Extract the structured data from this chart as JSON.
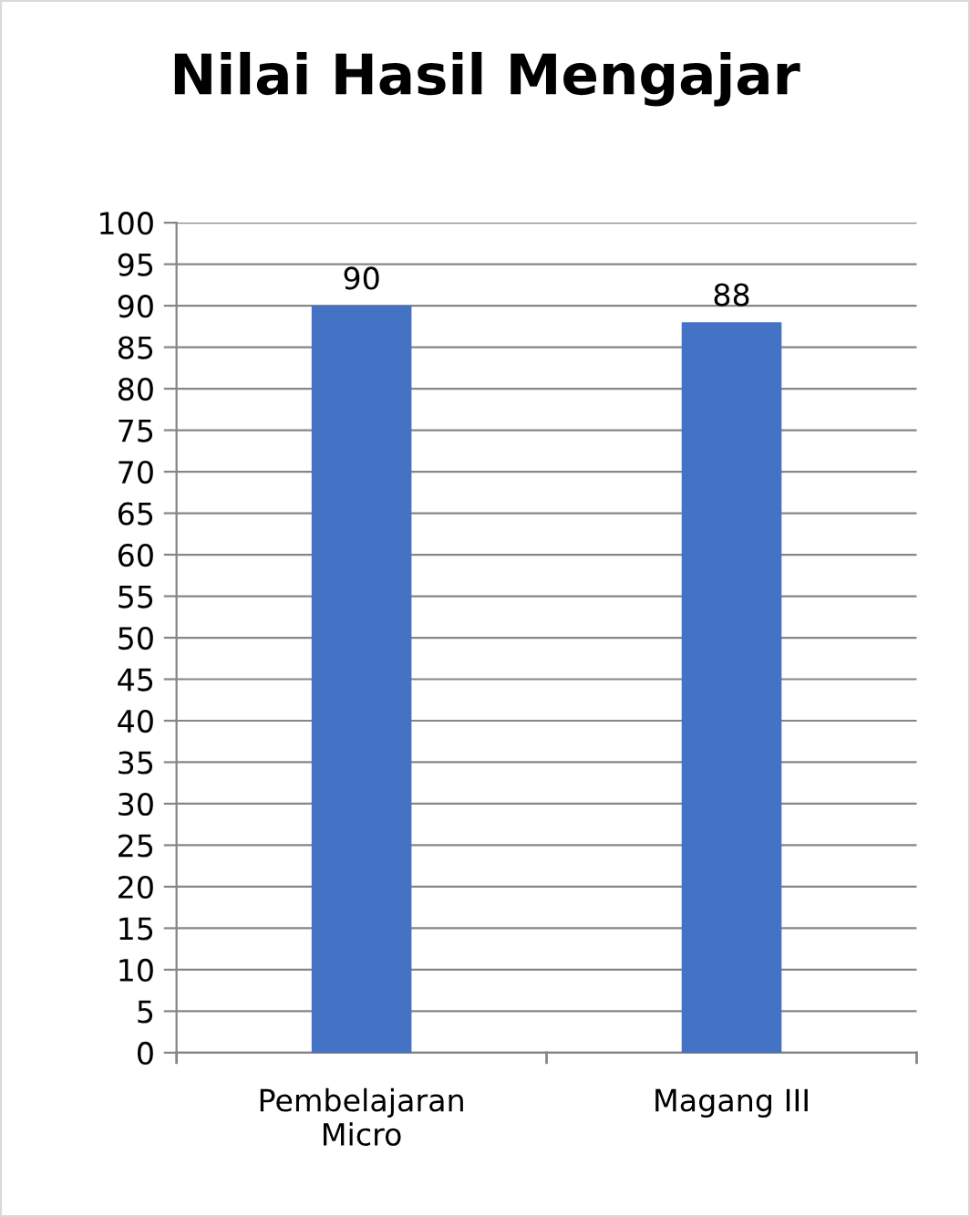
{
  "chart_data": {
    "type": "bar",
    "title": "Nilai Hasil Mengajar",
    "categories": [
      "Pembelajaran Micro",
      "Magang III"
    ],
    "values": [
      90,
      88
    ],
    "color": "#4472c4",
    "ylim": [
      0,
      100
    ],
    "yticks": [
      0,
      5,
      10,
      15,
      20,
      25,
      30,
      35,
      40,
      45,
      50,
      55,
      60,
      65,
      70,
      75,
      80,
      85,
      90,
      95,
      100
    ],
    "grid": "y",
    "data_labels": true,
    "legend": false
  }
}
